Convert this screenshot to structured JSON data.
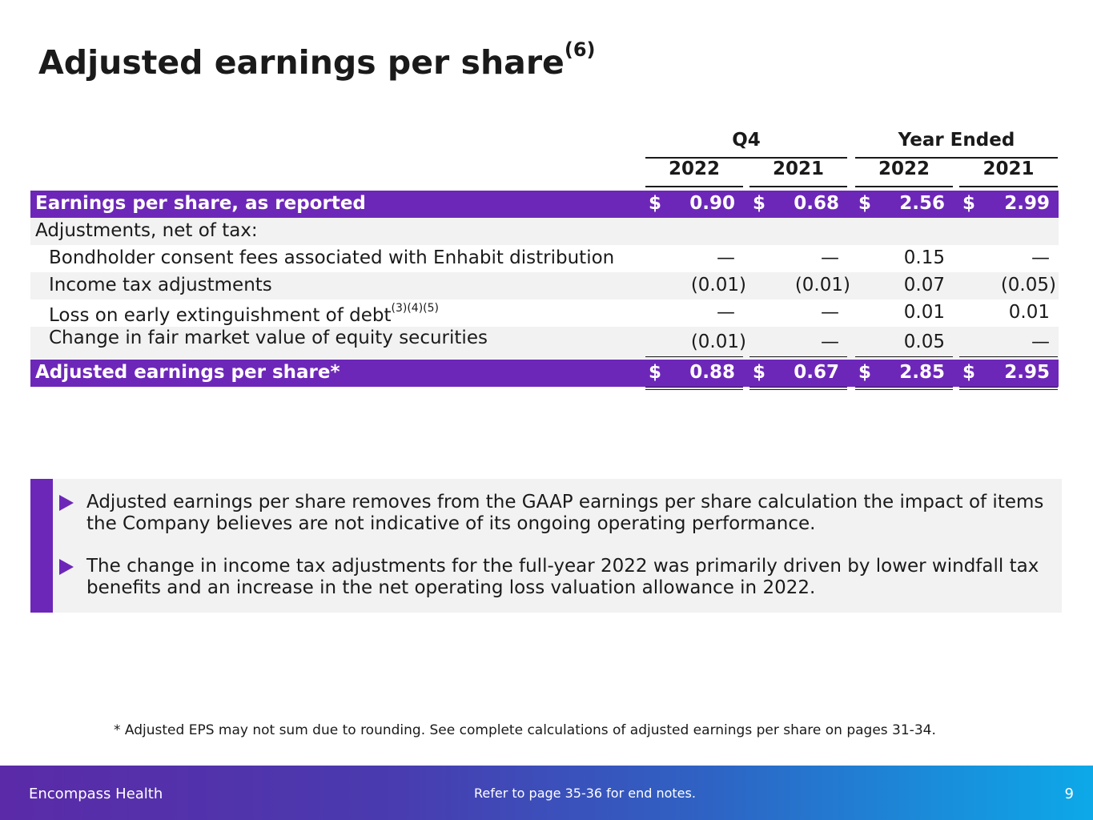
{
  "title": "Adjusted earnings per share",
  "title_sup": "(6)",
  "table": {
    "group_q4": "Q4",
    "group_year": "Year Ended",
    "years": [
      "2022",
      "2021",
      "2022",
      "2021"
    ],
    "rows": [
      {
        "label": "Earnings per share, as reported",
        "values": [
          "0.90",
          "0.68",
          "2.56",
          "2.99"
        ],
        "dollar": "$"
      },
      {
        "label": "Adjustments, net of tax:"
      },
      {
        "label": "Bondholder consent fees associated with Enhabit distribution",
        "values": [
          "—",
          "—",
          "0.15",
          "—"
        ]
      },
      {
        "label": "Income tax adjustments",
        "values": [
          "(0.01)",
          "(0.01)",
          "0.07",
          "(0.05)"
        ]
      },
      {
        "label": "Loss on early extinguishment of debt",
        "sup": "(3)(4)(5)",
        "values": [
          "—",
          "—",
          "0.01",
          "0.01"
        ]
      },
      {
        "label": "Change in fair market value of equity securities",
        "values": [
          "(0.01)",
          "—",
          "0.05",
          "—"
        ]
      },
      {
        "label": "Adjusted earnings per share*",
        "values": [
          "0.88",
          "0.67",
          "2.85",
          "2.95"
        ],
        "dollar": "$"
      }
    ]
  },
  "notes": [
    "Adjusted earnings per share removes from the GAAP earnings per share calculation the impact of items the Company believes are not indicative of its ongoing operating performance.",
    "The change in income tax adjustments for the full-year 2022 was primarily driven by lower windfall tax benefits and an increase in the net operating loss valuation allowance in 2022."
  ],
  "footnote": "* Adjusted EPS may not sum due to rounding. See complete calculations of adjusted earnings per share on pages 31-34.",
  "footer": {
    "brand": "Encompass Health",
    "reference": "Refer to page 35-36 for end notes.",
    "page_number": "9"
  },
  "colors": {
    "accent": "#6d27b8",
    "band": "#f2f2f2"
  },
  "icons": {
    "bullet": "triangle-right-icon"
  }
}
